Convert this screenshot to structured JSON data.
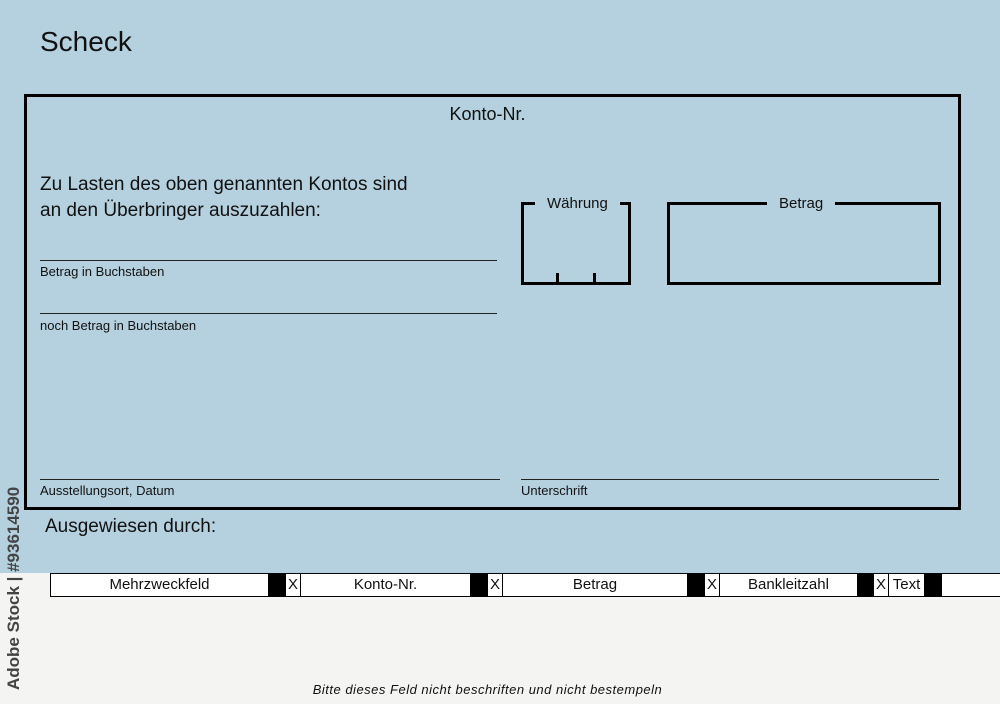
{
  "title": "Scheck",
  "form": {
    "account_label": "Konto-Nr.",
    "intro_line1": "Zu Lasten des oben genannten Kontos sind",
    "intro_line2": "an den Überbringer auszuzahlen:",
    "amount_words_label": "Betrag in Buchstaben",
    "amount_words_more_label": "noch Betrag in Buchstaben",
    "currency_label": "Währung",
    "amount_label": "Betrag",
    "place_date_label": "Ausstellungsort, Datum",
    "signature_label": "Unterschrift"
  },
  "identified_by": "Ausgewiesen durch:",
  "code_strip": {
    "fields": [
      "Mehrzweckfeld",
      "Konto-Nr.",
      "Betrag",
      "Bankleitzahl",
      "Text"
    ],
    "separator": "X"
  },
  "footer": "Bitte dieses Feld nicht beschriften und nicht bestempeln",
  "watermark": "Adobe Stock | #93614590",
  "colors": {
    "background": "#b5d0de",
    "lower_area": "#f4f4f2"
  }
}
